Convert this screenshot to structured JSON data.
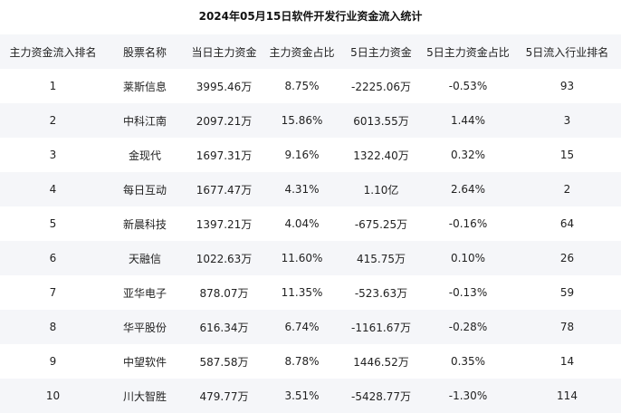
{
  "title": "2024年05月15日软件开发行业资金流入统计",
  "table": {
    "headers": [
      "主力资金流入排名",
      "股票名称",
      "当日主力资金",
      "主力资金占比",
      "5日主力资金",
      "5日主力资金占比",
      "5日流入行业排名"
    ],
    "rows": [
      [
        "1",
        "莱斯信息",
        "3995.46万",
        "8.75%",
        "-2225.06万",
        "-0.53%",
        "93"
      ],
      [
        "2",
        "中科江南",
        "2097.21万",
        "15.86%",
        "6013.55万",
        "1.44%",
        "3"
      ],
      [
        "3",
        "金现代",
        "1697.31万",
        "9.16%",
        "1322.40万",
        "0.32%",
        "15"
      ],
      [
        "4",
        "每日互动",
        "1677.47万",
        "4.31%",
        "1.10亿",
        "2.64%",
        "2"
      ],
      [
        "5",
        "新晨科技",
        "1397.21万",
        "4.04%",
        "-675.25万",
        "-0.16%",
        "64"
      ],
      [
        "6",
        "天融信",
        "1022.63万",
        "11.60%",
        "415.75万",
        "0.10%",
        "26"
      ],
      [
        "7",
        "亚华电子",
        "878.07万",
        "11.35%",
        "-523.63万",
        "-0.13%",
        "59"
      ],
      [
        "8",
        "华平股份",
        "616.34万",
        "6.74%",
        "-1161.67万",
        "-0.28%",
        "78"
      ],
      [
        "9",
        "中望软件",
        "587.58万",
        "8.78%",
        "1446.52万",
        "0.35%",
        "14"
      ],
      [
        "10",
        "川大智胜",
        "479.77万",
        "3.51%",
        "-5428.77万",
        "-1.30%",
        "114"
      ]
    ]
  }
}
